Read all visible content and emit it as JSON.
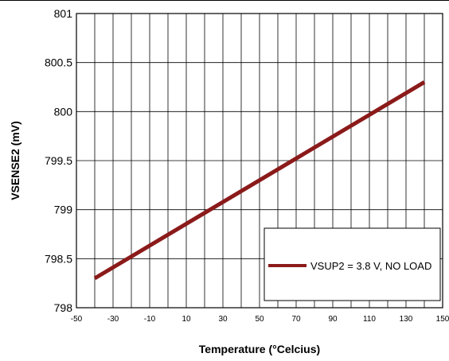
{
  "chart_data": {
    "type": "line",
    "xlabel": "Temperature (°Celcius)",
    "ylabel": "VSENSE2 (mV)",
    "xlim": [
      -50,
      150
    ],
    "ylim": [
      798,
      801
    ],
    "x_ticks": [
      -50,
      -30,
      -10,
      10,
      30,
      50,
      70,
      90,
      110,
      130,
      150
    ],
    "x_tick_labels": [
      "-50",
      "-30",
      "-10",
      "10",
      "30",
      "50",
      "70",
      "90",
      "110",
      "130",
      "150"
    ],
    "y_ticks": [
      798,
      798.5,
      799,
      799.5,
      800,
      800.5,
      801
    ],
    "y_tick_labels": [
      "798",
      "798.5",
      "799",
      "799.5",
      "800",
      "800.5",
      "801"
    ],
    "grid": true,
    "vertical_grid_every": 10,
    "legend_position": "bottom-right",
    "series": [
      {
        "name": "VSUP2 = 3.8 V, NO LOAD",
        "color": "#8B1A1A",
        "x": [
          -40,
          140
        ],
        "y": [
          798.3,
          800.3
        ]
      }
    ]
  }
}
